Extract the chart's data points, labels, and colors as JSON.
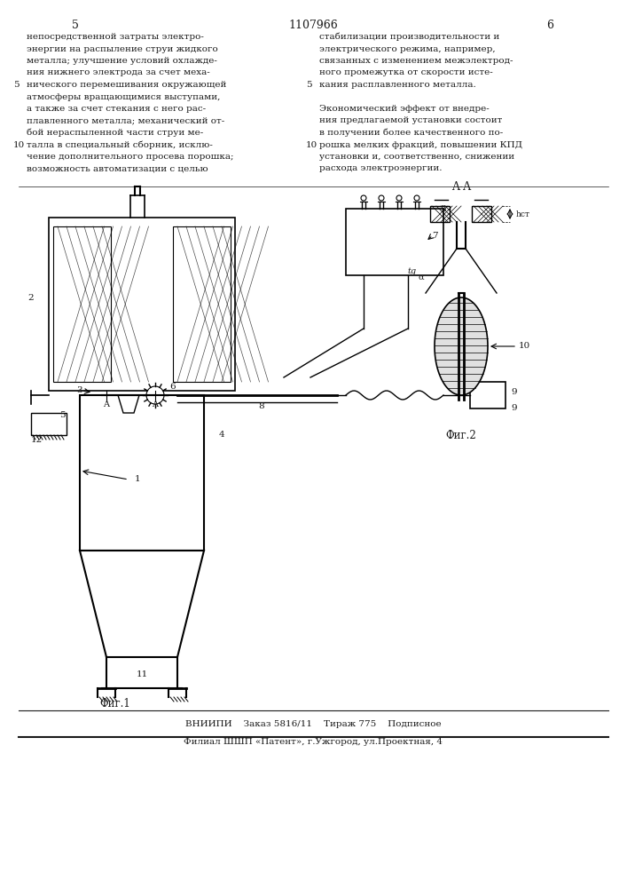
{
  "page_number": "1107966",
  "page_left": "5",
  "page_right": "6",
  "bg_color": "#ffffff",
  "text_color": "#1a1a1a",
  "text_left_col": [
    "непосредственной затраты электро-",
    "энергии на распыление струи жидкого",
    "металла; улучшение условий охлажде-",
    "ния нижнего электрода за счет меха-",
    "нического перемешивания окружающей",
    "атмосферы вращающимися выступами,",
    "а также за счет стекания с него рас-",
    "плавленного металла; механический от-",
    "бой нераспыленной части струи ме-",
    "талла в специальный сборник, исклю-",
    "чение дополнительного просева порошка;",
    "возможность автоматизации с целью"
  ],
  "text_right_col": [
    "стабилизации производительности и",
    "электрического режима, например,",
    "связанных с изменением межэлектрод-",
    "ного промежутка от скорости исте-",
    "кания расплавленного металла.",
    "",
    "Экономический эффект от внедре-",
    "ния предлагаемой установки состоит",
    "в получении более качественного по-",
    "рошка мелких фракций, повышении КПД",
    "установки и, соответственно, снижении",
    "расхода электроэнергии."
  ],
  "footer_line1": "ВНИИПИ    Заказ 5816/11    Тираж 775    Подписное",
  "footer_line2": "Филиал ШШП «Патент», г.Ужгород, ул.Проектная, 4",
  "fig1_label": "Фиг.1",
  "fig2_label": "Фиг.2",
  "fig2_section_label": "A-A"
}
